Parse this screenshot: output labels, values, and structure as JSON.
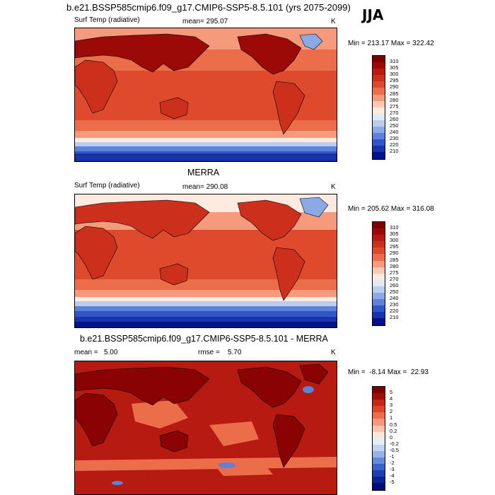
{
  "figure": {
    "title": "b.e21.BSSP585cmip6.f09_g17.CMIP6-SSP5-8.5.101 (yrs 2075-2099)",
    "season": "JJA"
  },
  "panels": [
    {
      "id": "model",
      "variable": "Surf Temp (radiative)",
      "mean_text": "mean= 295.07",
      "units": "K",
      "minmax_text": "Min = 213.17 Max = 322.42",
      "colorbar": {
        "labels": [
          "310",
          "305",
          "300",
          "295",
          "290",
          "285",
          "280",
          "275",
          "270",
          "260",
          "250",
          "240",
          "230",
          "220",
          "210"
        ],
        "colors": [
          "#7f0000",
          "#9b0a07",
          "#b71a10",
          "#cc2f1c",
          "#de4a2c",
          "#ec6d4a",
          "#f59a7a",
          "#fbc7b0",
          "#fdebe0",
          "#dfe9f8",
          "#b9cdef",
          "#8aa9e6",
          "#5c82da",
          "#3156c9",
          "#1734ad",
          "#04128a"
        ]
      }
    },
    {
      "id": "obs",
      "title": "MERRA",
      "variable": "Surf Temp (radiative)",
      "mean_text": "mean= 290.08",
      "units": "K",
      "minmax_text": "Min = 205.62 Max = 316.08",
      "colorbar": {
        "labels": [
          "310",
          "305",
          "300",
          "295",
          "290",
          "285",
          "280",
          "275",
          "270",
          "260",
          "250",
          "240",
          "230",
          "220",
          "210"
        ],
        "colors": [
          "#7f0000",
          "#9b0a07",
          "#b71a10",
          "#cc2f1c",
          "#de4a2c",
          "#ec6d4a",
          "#f59a7a",
          "#fbc7b0",
          "#fdebe0",
          "#dfe9f8",
          "#b9cdef",
          "#8aa9e6",
          "#5c82da",
          "#3156c9",
          "#1734ad",
          "#04128a"
        ]
      }
    },
    {
      "id": "diff",
      "title": "b.e21.BSSP585cmip6.f09_g17.CMIP6-SSP5-8.5.101 - MERRA",
      "mean_text": "mean =   5.00",
      "rmse_text": "rmse =    5.70",
      "units": "K",
      "minmax_text": "Min =  -8.14 Max =  22.93",
      "colorbar": {
        "labels": [
          "5",
          "4",
          "3",
          "2",
          "1",
          "0.5",
          "0.2",
          "0",
          "-0.2",
          "-0.5",
          "-1",
          "-2",
          "-3",
          "-4",
          "-5"
        ],
        "colors": [
          "#7f0000",
          "#a30d08",
          "#c32816",
          "#db4528",
          "#ec6d4a",
          "#f5997a",
          "#fbc4ad",
          "#fde7dc",
          "#e4edf9",
          "#c1d3f1",
          "#94b1e8",
          "#668ada",
          "#3b62cc",
          "#1c3fb4",
          "#0a2497",
          "#020c7a"
        ]
      }
    }
  ],
  "palette": {
    "model_bands": [
      "#04128a",
      "#1734ad",
      "#3156c9",
      "#5c82da",
      "#b9cdef",
      "#fdebe0",
      "#f59a7a",
      "#ec6d4a",
      "#de4a2c",
      "#cc2f1c",
      "#b71a10"
    ],
    "land_hot": "#9b0a07",
    "land_warm": "#cc2f1c",
    "ice_cold": "#8aa9e6",
    "diff_base": "#b71a10",
    "diff_land": "#8a0303",
    "diff_light": "#ec6d4a",
    "diff_blue": "#5c82da"
  }
}
